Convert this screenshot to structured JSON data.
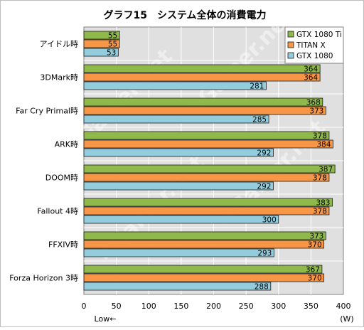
{
  "chart_data": {
    "type": "bar",
    "orientation": "horizontal",
    "title": "グラフ15　システム全体の消費電力",
    "categories": [
      "アイドル時",
      "3DMark時",
      "Far Cry Primal時",
      "ARK時",
      "DOOM時",
      "Fallout 4時",
      "FFXIV時",
      "Forza Horizon 3時"
    ],
    "series": [
      {
        "name": "GTX 1080 Ti",
        "color": "#8fb94a",
        "values": [
          55,
          364,
          368,
          378,
          387,
          383,
          373,
          367
        ]
      },
      {
        "name": "TITAN X",
        "color": "#f79646",
        "values": [
          55,
          364,
          373,
          384,
          378,
          378,
          370,
          370
        ]
      },
      {
        "name": "GTX 1080",
        "color": "#93cddd",
        "values": [
          53,
          281,
          285,
          292,
          292,
          300,
          293,
          288
        ]
      }
    ],
    "xlim": [
      0,
      400
    ],
    "xticks": [
      0,
      50,
      100,
      150,
      200,
      250,
      300,
      350,
      400
    ],
    "xlabel_left": "Low←",
    "xunit": "(W)",
    "legend_position": "top-right",
    "grid": true,
    "background_color": "#e0e0e0",
    "watermark": "4Gamer.net"
  }
}
